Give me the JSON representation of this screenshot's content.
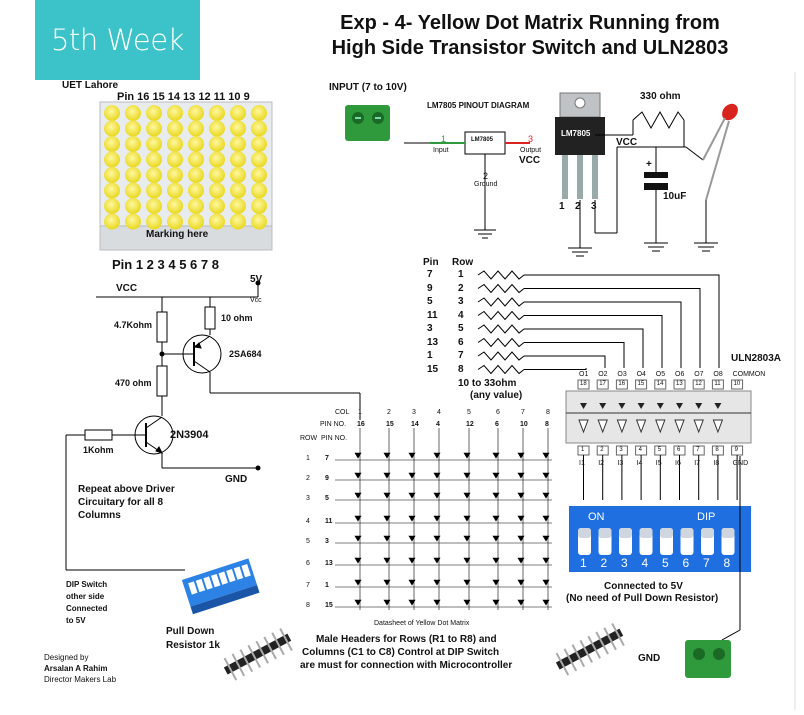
{
  "badge": "5th Week",
  "title": {
    "line1": "Exp - 4- Yellow Dot Matrix  Running from",
    "line2": "High Side Transistor Switch and ULN2803"
  },
  "uet": "UET Lahore",
  "matrix": {
    "pin_top": "Pin 16 15 14 13 12 11 10 9",
    "marking": "Marking here",
    "pin_bottom": "Pin 1 2 3 4 5 6 7 8"
  },
  "power": {
    "input": "INPUT (7 to 10V)",
    "pinout_title": "LM7805 PINOUT DIAGRAM",
    "chip": "LM7805",
    "pin1": "1",
    "input_lbl": "Input",
    "pin2": "2",
    "ground_lbl": "Ground",
    "pin3": "3",
    "output_lbl": "Output",
    "vcc": "VCC",
    "reg_pins": [
      "1",
      "2",
      "3"
    ],
    "resistor": "330 ohm",
    "cap": "10uF",
    "plus": "+"
  },
  "driver": {
    "vcc": "VCC",
    "five_v": "5V",
    "vcc_small": "Vcc",
    "r1": "4.7Kohm",
    "r2": "10 ohm",
    "pnp": "2SA684",
    "r3": "470 ohm",
    "npn": "2N3904",
    "rb": "1Kohm",
    "gnd": "GND",
    "note": [
      "Repeat above Driver",
      "Circuitary for all 8",
      "Columns"
    ]
  },
  "rows_table": {
    "pin_head": "Pin",
    "row_head": "Row",
    "pins": [
      "7",
      "9",
      "5",
      "11",
      "3",
      "13",
      "1",
      "15"
    ],
    "rows": [
      "1",
      "2",
      "3",
      "4",
      "5",
      "6",
      "7",
      "8"
    ],
    "res_note": [
      "10 to 33ohm",
      "(any value)"
    ]
  },
  "uln": {
    "name": "ULN2803A",
    "out_labels": [
      "O1",
      "O2",
      "O3",
      "O4",
      "O5",
      "O6",
      "O7",
      "O8",
      "COMMON"
    ],
    "top_pins": [
      "18",
      "17",
      "16",
      "15",
      "14",
      "13",
      "12",
      "11",
      "10"
    ],
    "bottom_pins": [
      "1",
      "2",
      "3",
      "4",
      "5",
      "6",
      "7",
      "8",
      "9"
    ],
    "in_labels": [
      "I1",
      "I2",
      "I3",
      "I4",
      "I5",
      "I6",
      "I7",
      "I8",
      "GND"
    ]
  },
  "dip": {
    "on": "ON",
    "dip": "DIP",
    "numbers": [
      "1",
      "2",
      "3",
      "4",
      "5",
      "6",
      "7",
      "8"
    ],
    "note": [
      "Connected to 5V",
      "(No need of Pull Down Resistor)"
    ]
  },
  "datasheet": {
    "col": "COL",
    "pin_no": "PIN NO.",
    "row": "ROW",
    "cols": [
      "1",
      "2",
      "3",
      "4",
      "5",
      "6",
      "7",
      "8"
    ],
    "col_pins": [
      "16",
      "15",
      "14",
      "4",
      "12",
      "6",
      "10",
      "8"
    ],
    "rows": [
      "1",
      "2",
      "3",
      "4",
      "5",
      "6",
      "7",
      "8"
    ],
    "row_pins": [
      "7",
      "9",
      "5",
      "11",
      "3",
      "13",
      "1",
      "15"
    ],
    "caption": "Datasheet of Yellow Dot Matrix"
  },
  "dip_switch_note": [
    "DIP Switch",
    "other side",
    "Connected",
    "to 5V"
  ],
  "pull_down": [
    "Pull Down",
    "Resistor 1k"
  ],
  "headers_note": [
    "Male Headers for Rows (R1 to R8) and",
    "Columns (C1 to C8) Control at DIP Switch",
    "are must for connection with Microcontroller"
  ],
  "gnd": "GND",
  "designer": {
    "line1": "Designed by",
    "line2": "Arsalan A Rahim",
    "line3": "Director Makers Lab"
  },
  "colors": {
    "badge": "#3cc3c9",
    "led_yellow": "#f2e22a",
    "terminal_green": "#2e9a3c",
    "dip_blue": "#1f6fe0"
  }
}
